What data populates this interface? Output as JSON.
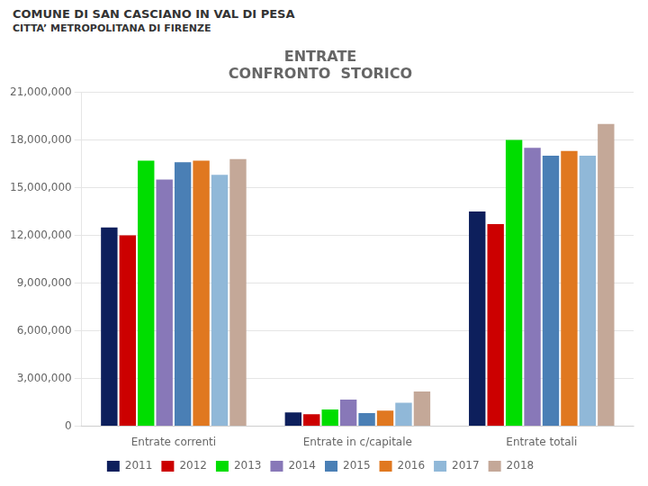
{
  "chart_data": {
    "type": "bar",
    "title": [
      "ENTRATE",
      "CONFRONTO  STORICO"
    ],
    "annotations": [
      "COMUNE DI SAN CASCIANO IN VAL DI PESA",
      "CITTA’ METROPOLITANA DI FIRENZE"
    ],
    "categories": [
      "Entrate correnti",
      "Entrate in c/capitale",
      "Entrate totali"
    ],
    "series": [
      {
        "name": "2011",
        "color": "#0d1f5c",
        "values": [
          12500000,
          870000,
          13500000
        ]
      },
      {
        "name": "2012",
        "color": "#cc0000",
        "values": [
          12000000,
          750000,
          12700000
        ]
      },
      {
        "name": "2013",
        "color": "#00dd00",
        "values": [
          16700000,
          1050000,
          18000000
        ]
      },
      {
        "name": "2014",
        "color": "#8878b8",
        "values": [
          15500000,
          1680000,
          17500000
        ]
      },
      {
        "name": "2015",
        "color": "#4a7fb5",
        "values": [
          16600000,
          820000,
          17000000
        ]
      },
      {
        "name": "2016",
        "color": "#e07820",
        "values": [
          16700000,
          980000,
          17300000
        ]
      },
      {
        "name": "2017",
        "color": "#90b8d8",
        "values": [
          15800000,
          1480000,
          17000000
        ]
      },
      {
        "name": "2018",
        "color": "#c4a898",
        "values": [
          16800000,
          2180000,
          19000000
        ]
      }
    ],
    "ylim": [
      0,
      21000000
    ],
    "yticks": [
      0,
      {
        "value": 3000000,
        "label": "3,000,000"
      },
      {
        "value": 6000000,
        "label": "6,000,000"
      },
      {
        "value": 9000000,
        "label": "9,000,000"
      },
      {
        "value": 12000000,
        "label": "12,000,000"
      },
      {
        "value": 15000000,
        "label": "15,000,000"
      },
      {
        "value": 18000000,
        "label": "18,000,000"
      },
      {
        "value": 21000000,
        "label": "21,000,000"
      }
    ],
    "grid": "y",
    "legend": "bottom"
  }
}
